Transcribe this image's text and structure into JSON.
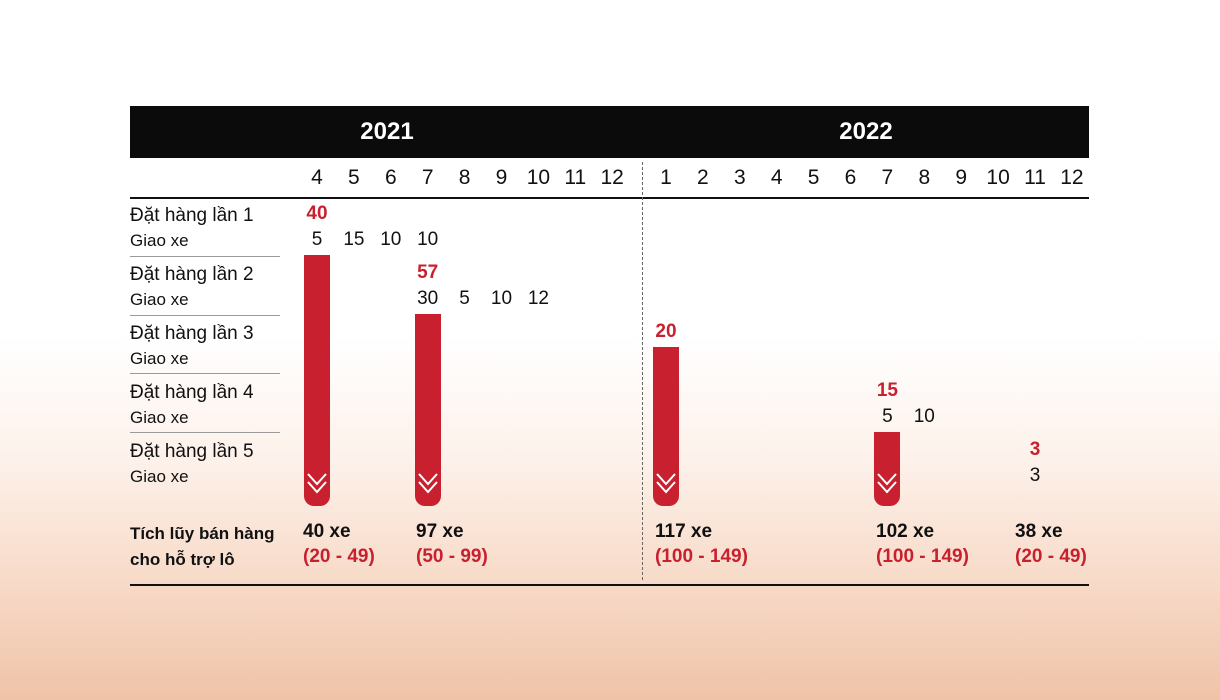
{
  "chart_data": {
    "type": "table",
    "years": [
      {
        "label": "2021",
        "months": [
          "4",
          "5",
          "6",
          "7",
          "8",
          "9",
          "10",
          "11",
          "12"
        ]
      },
      {
        "label": "2022",
        "months": [
          "1",
          "2",
          "3",
          "4",
          "5",
          "6",
          "7",
          "8",
          "9",
          "10",
          "11",
          "12"
        ]
      }
    ],
    "rows": [
      {
        "title": "Đặt hàng lần 1",
        "sub": "Giao xe"
      },
      {
        "title": "Đặt hàng lần 2",
        "sub": "Giao xe"
      },
      {
        "title": "Đặt hàng lần 3",
        "sub": "Giao xe"
      },
      {
        "title": "Đặt hàng lần 4",
        "sub": "Giao xe"
      },
      {
        "title": "Đặt hàng lần 5",
        "sub": "Giao xe"
      }
    ],
    "orders": [
      {
        "row": 0,
        "year": 0,
        "month": 0,
        "qty": "40",
        "deliveries": [
          {
            "month": 0,
            "qty": "5"
          },
          {
            "month": 1,
            "qty": "15"
          },
          {
            "month": 2,
            "qty": "10"
          },
          {
            "month": 3,
            "qty": "10"
          }
        ]
      },
      {
        "row": 1,
        "year": 0,
        "month": 3,
        "qty": "57",
        "deliveries": [
          {
            "month": 3,
            "qty": "30"
          },
          {
            "month": 4,
            "qty": "5"
          },
          {
            "month": 5,
            "qty": "10"
          },
          {
            "month": 6,
            "qty": "12"
          }
        ]
      },
      {
        "row": 2,
        "year": 1,
        "month": 0,
        "qty": "20",
        "deliveries": []
      },
      {
        "row": 3,
        "year": 1,
        "month": 6,
        "qty": "15",
        "deliveries": [
          {
            "month": 6,
            "qty": "5"
          },
          {
            "month": 7,
            "qty": "10"
          }
        ]
      },
      {
        "row": 4,
        "year": 1,
        "month": 10,
        "qty": "3",
        "deliveries": [
          {
            "month": 10,
            "qty": "3"
          }
        ]
      }
    ],
    "summary": {
      "label_line1": "Tích lũy bán hàng",
      "label_line2": "cho hỗ trợ lô",
      "items": [
        {
          "total": "40 xe",
          "range": "(20 - 49)"
        },
        {
          "total": "97 xe",
          "range": "(50 - 99)"
        },
        {
          "total": "117 xe",
          "range": "(100 - 149)"
        },
        {
          "total": "102 xe",
          "range": "(100 - 149)"
        },
        {
          "total": "38 xe",
          "range": "(20 - 49)"
        }
      ]
    },
    "colors": {
      "accent": "#c8202f",
      "header": "#0b0b0b",
      "text": "#111111"
    }
  }
}
